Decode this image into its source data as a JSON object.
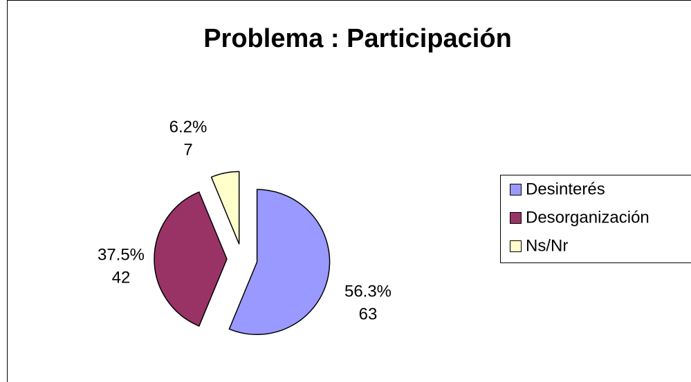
{
  "chart_data": {
    "type": "pie",
    "title": "Problema : Participación",
    "categories": [
      "Desinterés",
      "Desorganización",
      "Ns/Nr"
    ],
    "values": [
      63,
      42,
      7
    ],
    "percent_labels": [
      "56.3%",
      "37.5%",
      "6.2%"
    ],
    "colors": [
      "#9999ff",
      "#993366",
      "#ffffcc"
    ],
    "legend": "right"
  }
}
